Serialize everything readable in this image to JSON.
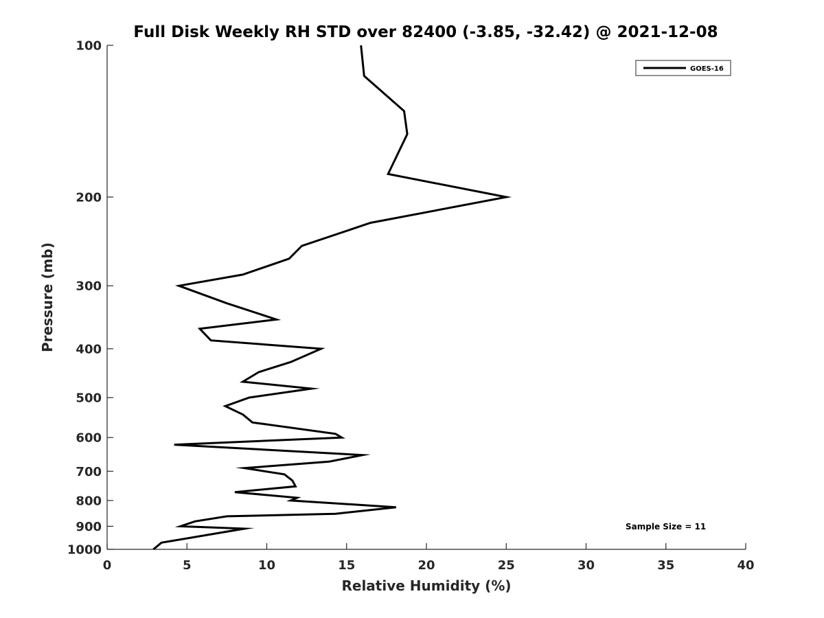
{
  "chart_data": {
    "type": "line",
    "title": "Full Disk Weekly RH STD over 82400 (-3.85, -32.42) @ 2021-12-08",
    "xlabel": "Relative Humidity (%)",
    "ylabel": "Pressure (mb)",
    "xlim": [
      0,
      40
    ],
    "ylim": [
      100,
      1000
    ],
    "yscale": "log",
    "y_reversed": true,
    "xticks": [
      "0",
      "5",
      "10",
      "15",
      "20",
      "25",
      "30",
      "35",
      "40"
    ],
    "yticks": [
      "100",
      "200",
      "300",
      "400",
      "500",
      "600",
      "700",
      "800",
      "900",
      "1000"
    ],
    "grid": false,
    "legend_position": "top-right",
    "annotation": "Sample Size = 11",
    "line_color": "#000000",
    "series": [
      {
        "name": "GOES-16",
        "x": [
          15.9,
          16.1,
          18.6,
          18.8,
          17.6,
          25.0,
          16.5,
          12.2,
          11.4,
          8.5,
          4.5,
          7.5,
          10.6,
          5.8,
          6.5,
          13.4,
          11.5,
          9.5,
          8.5,
          12.8,
          8.9,
          7.4,
          8.5,
          9.1,
          14.3,
          14.7,
          4.2,
          16.0,
          13.9,
          8.6,
          11.1,
          11.6,
          11.8,
          8.0,
          11.9,
          11.5,
          18.1,
          14.3,
          7.5,
          5.5,
          4.6,
          8.6,
          3.4,
          2.9
        ],
        "y": [
          100,
          115,
          135,
          150,
          180,
          200,
          225,
          250,
          265,
          285,
          300,
          325,
          350,
          365,
          385,
          400,
          425,
          445,
          465,
          480,
          500,
          520,
          540,
          560,
          590,
          600,
          620,
          650,
          670,
          690,
          710,
          730,
          750,
          770,
          790,
          800,
          825,
          850,
          860,
          880,
          900,
          910,
          970,
          1000
        ]
      }
    ]
  }
}
